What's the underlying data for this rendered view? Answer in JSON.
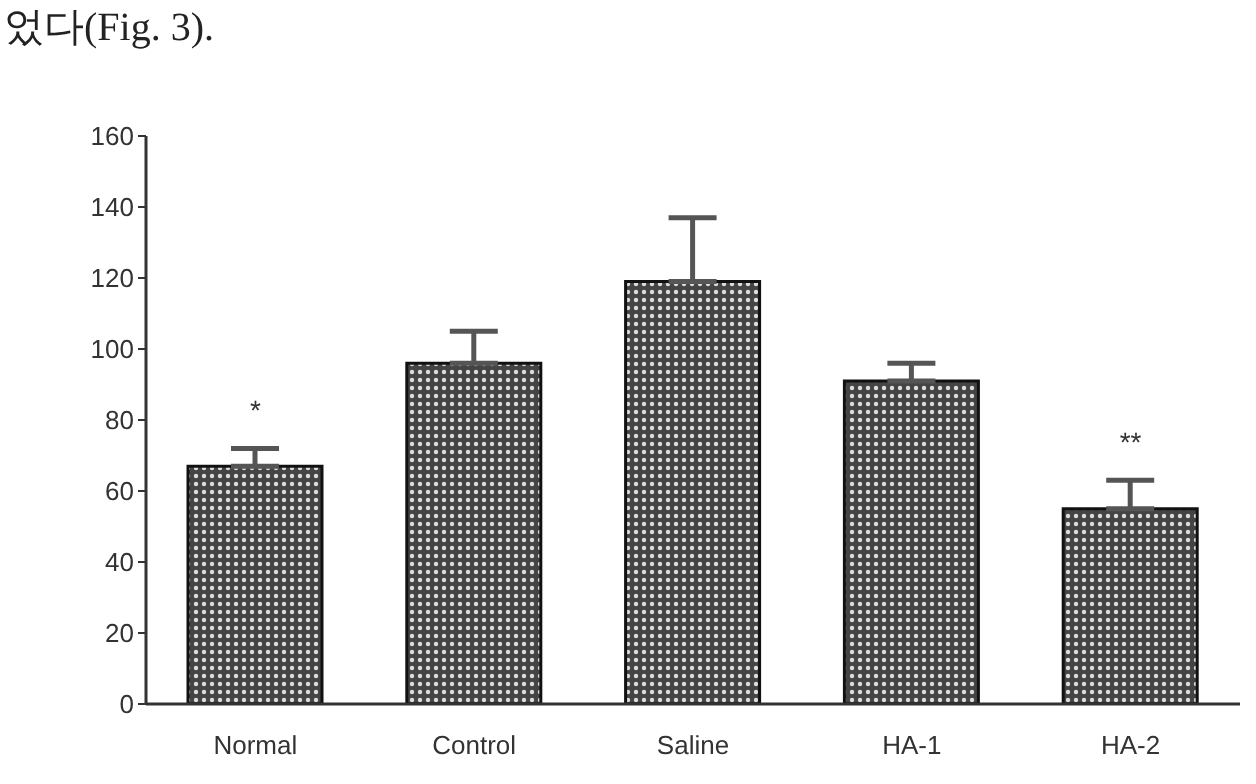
{
  "chart_data": {
    "type": "bar",
    "categories": [
      "Normal",
      "Control",
      "Saline",
      "HA-1",
      "HA-2"
    ],
    "values": [
      67,
      96,
      119,
      91,
      55
    ],
    "errors": [
      [
        67,
        72
      ],
      [
        96,
        105
      ],
      [
        119,
        137
      ],
      [
        91,
        96
      ],
      [
        55,
        63
      ]
    ],
    "color": "#111111",
    "ylim": [
      0,
      160
    ],
    "yticks": [
      0,
      20,
      40,
      60,
      80,
      100,
      120,
      140,
      160
    ],
    "grid": false,
    "annotations": [
      "었다(Fig. 3).",
      "*",
      "**"
    ]
  }
}
